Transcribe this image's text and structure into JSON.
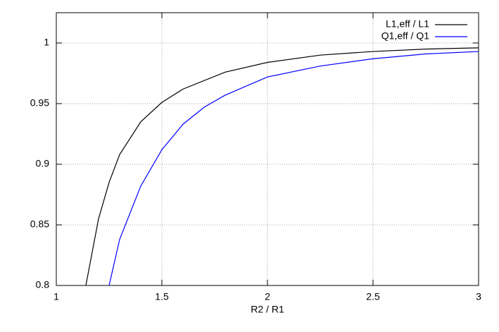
{
  "chart_data": {
    "type": "line",
    "xlabel": "R2 / R1",
    "xlim": [
      1,
      3
    ],
    "xticks": [
      1,
      1.5,
      2,
      2.5,
      3
    ],
    "ylim": [
      0.8,
      1.025
    ],
    "yticks": [
      0.8,
      0.85,
      0.9,
      0.95,
      1
    ],
    "grid": true,
    "legend": "top-right",
    "series": [
      {
        "name": "L1,eff / L1",
        "color": "#000000",
        "x": [
          1.14,
          1.2,
          1.25,
          1.3,
          1.4,
          1.5,
          1.6,
          1.8,
          2,
          2.25,
          2.5,
          2.75,
          3
        ],
        "values": [
          0.8,
          0.855,
          0.885,
          0.908,
          0.935,
          0.951,
          0.962,
          0.976,
          0.984,
          0.99,
          0.993,
          0.995,
          0.996
        ]
      },
      {
        "name": "Q1,eff / Q1",
        "color": "#0000ff",
        "x": [
          1.25,
          1.3,
          1.4,
          1.5,
          1.6,
          1.7,
          1.8,
          2,
          2.25,
          2.5,
          2.75,
          3
        ],
        "values": [
          0.8,
          0.838,
          0.882,
          0.912,
          0.933,
          0.947,
          0.957,
          0.972,
          0.981,
          0.987,
          0.991,
          0.993
        ]
      }
    ]
  }
}
